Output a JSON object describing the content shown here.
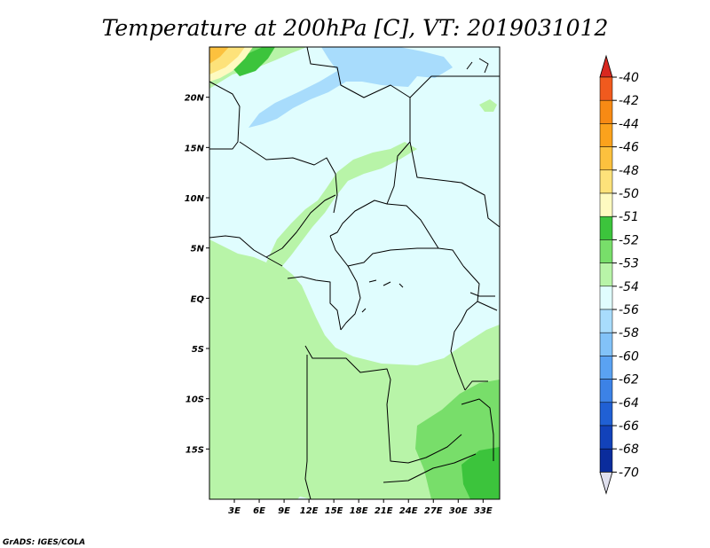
{
  "title": "Temperature at 200hPa [C], VT: 2019031012",
  "credit": "GrADS: IGES/COLA",
  "map": {
    "lon_range": [
      0,
      35
    ],
    "lat_range": [
      -20,
      25
    ],
    "lat_labels": [
      "20N",
      "15N",
      "10N",
      "5N",
      "EQ",
      "5S",
      "10S",
      "15S"
    ],
    "lon_labels": [
      "3E",
      "6E",
      "9E",
      "12E",
      "15E",
      "18E",
      "21E",
      "24E",
      "27E",
      "30E",
      "33E"
    ],
    "background_level": -54
  },
  "colorbar": {
    "levels": [
      {
        "label": "-40",
        "color": "#f04030"
      },
      {
        "label": "-42",
        "color": "#f05a1e"
      },
      {
        "label": "-44",
        "color": "#f78a14"
      },
      {
        "label": "-46",
        "color": "#fba21c"
      },
      {
        "label": "-48",
        "color": "#fcc13e"
      },
      {
        "label": "-50",
        "color": "#fde27a"
      },
      {
        "label": "-51",
        "color": "#fefac0"
      },
      {
        "label": "-52",
        "color": "#3cc43c"
      },
      {
        "label": "-53",
        "color": "#78de6a"
      },
      {
        "label": "-54",
        "color": "#b8f4a8"
      },
      {
        "label": "-56",
        "color": "#e0fdfe"
      },
      {
        "label": "-58",
        "color": "#a8dcfc"
      },
      {
        "label": "-60",
        "color": "#82c2f8"
      },
      {
        "label": "-62",
        "color": "#5aa2f2"
      },
      {
        "label": "-64",
        "color": "#3c82e6"
      },
      {
        "label": "-66",
        "color": "#2060d4"
      },
      {
        "label": "-68",
        "color": "#1242ba"
      },
      {
        "label": "-70",
        "color": "#0a2c9c"
      }
    ],
    "top_arrow_color": "#d82820",
    "bottom_arrow_color": "#e0e0ee",
    "bottom_label": "-70"
  }
}
